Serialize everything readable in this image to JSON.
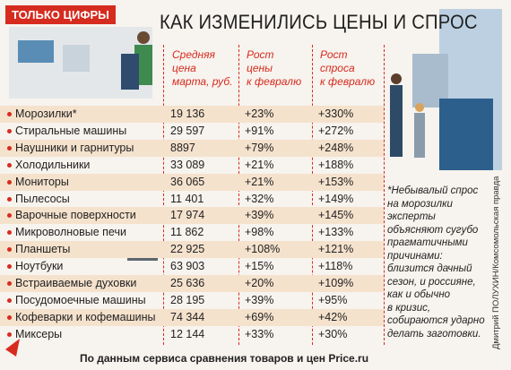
{
  "header": {
    "badge": "ТОЛЬКО ЦИФРЫ",
    "title": "КАК ИЗМЕНИЛИСЬ ЦЕНЫ И СПРОС"
  },
  "table": {
    "columns": [
      [
        "Средняя",
        "цена",
        "марта, руб."
      ],
      [
        "Рост",
        "цены",
        "к февралю"
      ],
      [
        "Рост",
        "спроса",
        "к февралю"
      ]
    ],
    "rows": [
      [
        "Морозилки*",
        "19 136",
        "+23%",
        "+330%"
      ],
      [
        "Стиральные машины",
        "29 597",
        "+91%",
        "+272%"
      ],
      [
        "Наушники и гарнитуры",
        "8897",
        "+79%",
        "+248%"
      ],
      [
        "Холодильники",
        "33 089",
        "+21%",
        "+188%"
      ],
      [
        "Мониторы",
        "36 065",
        "+21%",
        "+153%"
      ],
      [
        "Пылесосы",
        "11 401",
        "+32%",
        "+149%"
      ],
      [
        "Варочные поверхности",
        "17 974",
        "+39%",
        "+145%"
      ],
      [
        "Микроволновые печи",
        "11 862",
        "+98%",
        "+133%"
      ],
      [
        "Планшеты",
        "22 925",
        "+108%",
        "+121%"
      ],
      [
        "Ноутбуки",
        "63 903",
        "+15%",
        "+118%"
      ],
      [
        "Встраиваемые духовки",
        "25 636",
        "+20%",
        "+109%"
      ],
      [
        "Посудомоечные машины",
        "28 195",
        "+39%",
        "+95%"
      ],
      [
        "Кофеварки и кофемашины",
        "74 344",
        "+69%",
        "+42%"
      ],
      [
        "Миксеры",
        "12 144",
        "+33%",
        "+30%"
      ]
    ]
  },
  "note": [
    "*Небывалый спрос",
    "на морозилки",
    "эксперты",
    "объясняют сугубо",
    "прагматичными",
    "причинами:",
    "близится дачный",
    "сезон, и россияне,",
    "как и обычно",
    "в кризис,",
    "собираются ударно",
    "делать заготовки."
  ],
  "source": "По данным сервиса сравнения товаров и цен Price.ru",
  "credit": "Дмитрий ПОЛУХИН/Комсомольская правда"
}
